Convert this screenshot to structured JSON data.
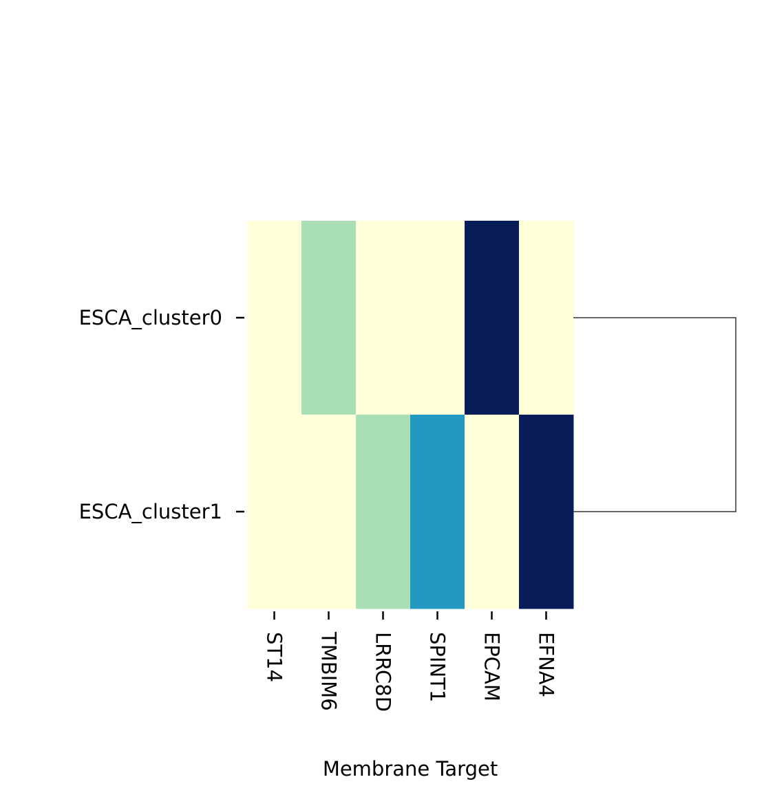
{
  "chart_data": {
    "type": "heatmap",
    "title": "",
    "xlabel": "Membrane Target",
    "ylabel": "",
    "columns": [
      "ST14",
      "TMBIM6",
      "LRRC8D",
      "SPINT1",
      "EPCAM",
      "EFNA4"
    ],
    "rows": [
      "ESCA_cluster0",
      "ESCA_cluster1"
    ],
    "values": [
      [
        0.0,
        0.3,
        0.0,
        0.0,
        1.0,
        0.0
      ],
      [
        0.0,
        0.0,
        0.3,
        0.6,
        0.0,
        1.0
      ]
    ],
    "colormap": "YlGnBu",
    "colors": {
      "low": "#ffffd9",
      "mid_low": "#b2e1b9",
      "mid_high": "#2ca1c2",
      "high": "#0a1e56"
    },
    "dendrogram": {
      "side": "right",
      "joins": [
        [
          "ESCA_cluster0",
          "ESCA_cluster1"
        ]
      ]
    },
    "colorbar": false,
    "grid": false,
    "legend": "none"
  }
}
